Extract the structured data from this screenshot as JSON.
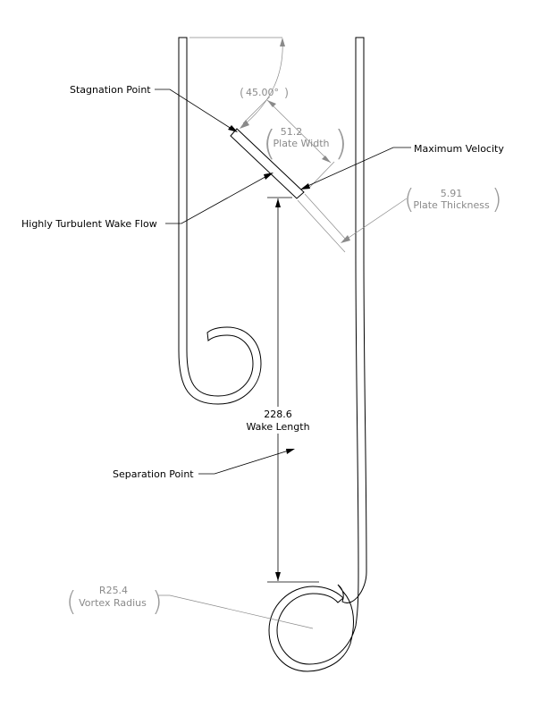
{
  "labels": {
    "stagnation_point": "Stagnation Point",
    "maximum_velocity": "Maximum Velocity",
    "turbulent_wake": "Highly Turbulent Wake Flow",
    "separation_point": "Separation Point"
  },
  "dimensions": {
    "angle": {
      "value": "45.00°"
    },
    "plate_width": {
      "value": "51.2",
      "name": "Plate Width"
    },
    "plate_thickness": {
      "value": "5.91",
      "name": "Plate Thickness"
    },
    "wake_length": {
      "value": "228.6",
      "name": "Wake Length"
    },
    "vortex_radius": {
      "value": "R25.4",
      "name": "Vortex Radius"
    }
  },
  "colors": {
    "geometry": "#000000",
    "reference_dimension": "#8a8a8a"
  }
}
